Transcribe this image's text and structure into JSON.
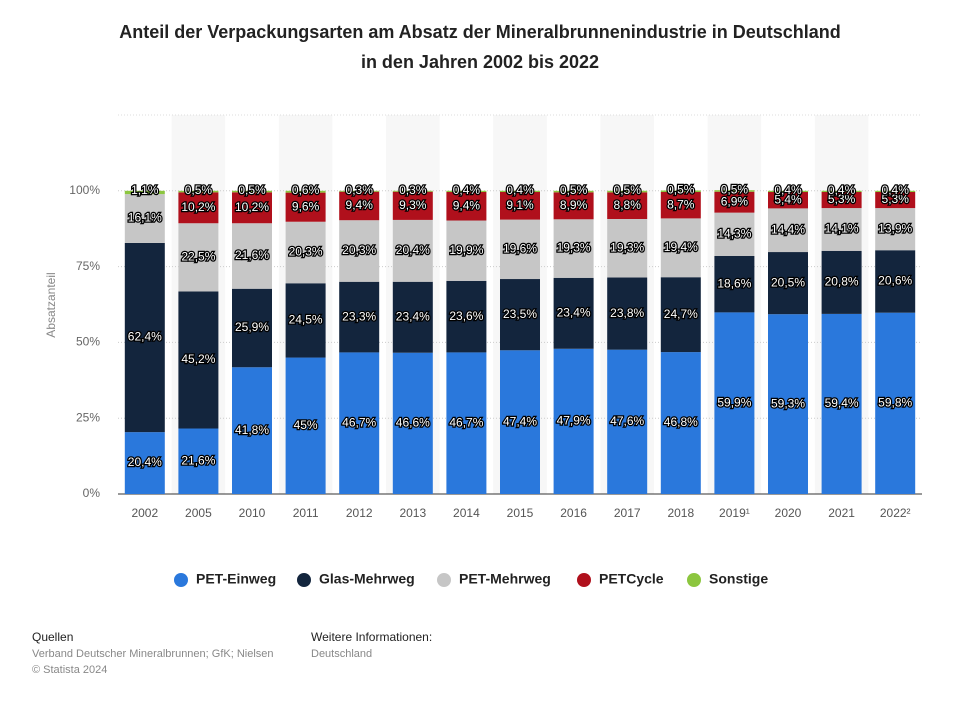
{
  "chart_data": {
    "type": "stacked_bar",
    "title": "Anteil der Verpackungsarten am Absatz der Mineralbrunnenindustrie in Deutschland",
    "subtitle": "in den Jahren 2002 bis 2022",
    "y_label": "Absatzanteil",
    "categories": [
      "2002",
      "2005",
      "2010",
      "2011",
      "2012",
      "2013",
      "2014",
      "2015",
      "2016",
      "2017",
      "2018",
      "2019¹",
      "2020",
      "2021",
      "2022²"
    ],
    "ylim": [
      0,
      125
    ],
    "yticks": [
      {
        "value": 0,
        "label": "0%"
      },
      {
        "value": 25,
        "label": "25%"
      },
      {
        "value": 50,
        "label": "50%"
      },
      {
        "value": 75,
        "label": "75%"
      },
      {
        "value": 100,
        "label": "100%"
      }
    ],
    "series": [
      {
        "name": "PET-Einweg",
        "color": "#2a78dc",
        "values": [
          20.4,
          21.6,
          41.8,
          45,
          46.7,
          46.6,
          46.7,
          47.4,
          47.9,
          47.6,
          46.8,
          59.9,
          59.3,
          59.4,
          59.8
        ],
        "value_labels": [
          "20,4%",
          "21,6%",
          "41,8%",
          "45%",
          "46,7%",
          "46,6%",
          "46,7%",
          "47,4%",
          "47,9%",
          "47,6%",
          "46,8%",
          "59,9%",
          "59,3%",
          "59,4%",
          "59,8%"
        ]
      },
      {
        "name": "Glas-Mehrweg",
        "color": "#13253d",
        "values": [
          62.4,
          45.2,
          25.9,
          24.5,
          23.3,
          23.4,
          23.6,
          23.5,
          23.4,
          23.8,
          24.7,
          18.6,
          20.5,
          20.8,
          20.6
        ],
        "value_labels": [
          "62,4%",
          "45,2%",
          "25,9%",
          "24,5%",
          "23,3%",
          "23,4%",
          "23,6%",
          "23,5%",
          "23,4%",
          "23,8%",
          "24,7%",
          "18,6%",
          "20,5%",
          "20,8%",
          "20,6%"
        ]
      },
      {
        "name": "PET-Mehrweg",
        "color": "#c6c6c6",
        "values": [
          16.1,
          22.5,
          21.6,
          20.3,
          20.3,
          20.4,
          19.9,
          19.6,
          19.3,
          19.3,
          19.4,
          14.3,
          14.4,
          14.1,
          13.9
        ],
        "value_labels": [
          "16,1%",
          "22,5%",
          "21,6%",
          "20,3%",
          "20,3%",
          "20,4%",
          "19,9%",
          "19,6%",
          "19,3%",
          "19,3%",
          "19,4%",
          "14,3%",
          "14,4%",
          "14,1%",
          "13,9%"
        ]
      },
      {
        "name": "PETCycle",
        "color": "#b0101c",
        "values": [
          null,
          10.2,
          10.2,
          9.6,
          9.4,
          9.3,
          9.4,
          9.1,
          8.9,
          8.8,
          8.7,
          6.9,
          5.4,
          5.3,
          5.3
        ],
        "value_labels": [
          null,
          "10,2%",
          "10,2%",
          "9,6%",
          "9,4%",
          "9,3%",
          "9,4%",
          "9,1%",
          "8,9%",
          "8,8%",
          "8,7%",
          "6,9%",
          "5,4%",
          "5,3%",
          "5,3%"
        ]
      },
      {
        "name": "Sonstige",
        "color": "#8cc63f",
        "values": [
          1.1,
          0.5,
          0.5,
          0.6,
          0.3,
          0.3,
          0.4,
          0.4,
          0.5,
          0.5,
          0.5,
          0.5,
          0.4,
          0.4,
          0.4
        ],
        "value_labels": [
          "1,1%",
          "0,5%",
          "0,5%",
          "0,6%",
          "0,3%",
          "0,3%",
          "0,4%",
          "0,4%",
          "0,5%",
          "0,5%",
          "0,5%",
          "0,5%",
          "0,4%",
          "0,4%",
          "0,4%"
        ]
      }
    ]
  },
  "footer": {
    "sources_heading": "Quellen",
    "sources": "Verband Deutscher Mineralbrunnen; GfK; Nielsen",
    "copyright": "© Statista 2024",
    "info_heading": "Weitere Informationen:",
    "info": "Deutschland"
  }
}
